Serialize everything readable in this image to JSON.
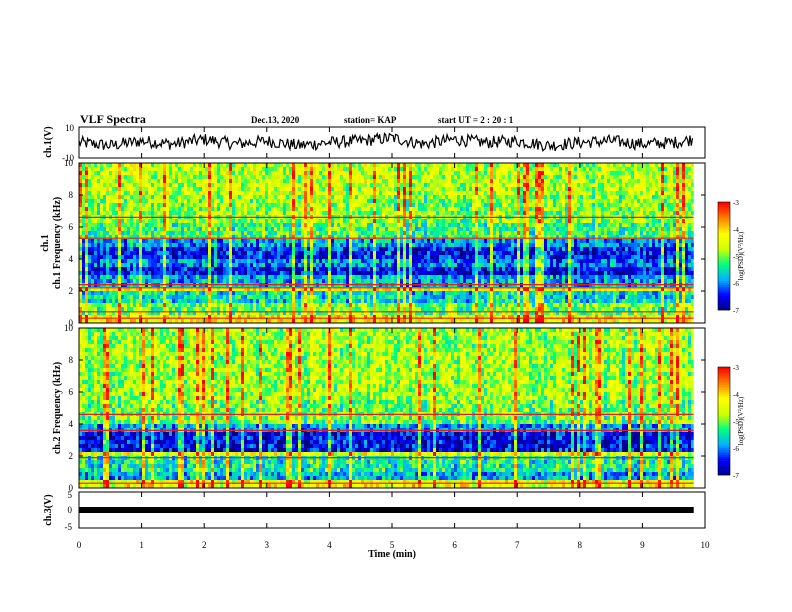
{
  "header": {
    "title": "VLF Spectra",
    "date": "Dec.13, 2020",
    "station": "station= KAP",
    "start": "start  UT =   2 : 20 : 1"
  },
  "colorbar": {
    "label": "log(PSD)(V²/Hz)",
    "ticks": [
      "-3",
      "-4",
      "-5",
      "-6",
      "-7"
    ],
    "range": [
      -7,
      -3
    ],
    "colors": [
      "#000080",
      "#0000ff",
      "#00b0ff",
      "#00ff80",
      "#d0ff00",
      "#ffff00",
      "#ff8000",
      "#ff0000",
      "#ffffff"
    ]
  },
  "chart_data": [
    {
      "type": "line",
      "panel": "ch1-waveform",
      "ylabel": "ch.1(V)",
      "ylim": [
        -10,
        10
      ],
      "yticks": [
        "10",
        "-10"
      ],
      "xlim": [
        0,
        10
      ],
      "series": [
        {
          "x": [
            0,
            0.5,
            1,
            1.5,
            2,
            2.5,
            3,
            3.5,
            4,
            4.5,
            5,
            5.5,
            6,
            6.5,
            7,
            7.5,
            8,
            8.5,
            9,
            9.5,
            9.8
          ],
          "values": [
            0,
            -2,
            1,
            -1,
            2,
            -1,
            1,
            -2,
            0,
            1,
            3,
            -1,
            2,
            0,
            1,
            -2,
            0,
            1,
            -1,
            0,
            2
          ]
        }
      ]
    },
    {
      "type": "heatmap",
      "panel": "ch1-spectrogram",
      "ylabel": "ch.1 Frequency (kHz)",
      "ylim": [
        0,
        10
      ],
      "yticks": [
        "0",
        "2",
        "4",
        "6",
        "8",
        "10"
      ],
      "xlim": [
        0,
        9.82
      ],
      "bands": [
        {
          "from": 0,
          "to": 0.5,
          "level": -4.2
        },
        {
          "from": 0.5,
          "to": 1.3,
          "level": -5.0
        },
        {
          "from": 1.3,
          "to": 2.0,
          "level": -5.6
        },
        {
          "from": 2.0,
          "to": 2.3,
          "level": -4.3
        },
        {
          "from": 2.3,
          "to": 3.0,
          "level": -5.8
        },
        {
          "from": 3.0,
          "to": 3.6,
          "level": -6.5
        },
        {
          "from": 3.6,
          "to": 4.0,
          "level": -6.0
        },
        {
          "from": 4.0,
          "to": 4.7,
          "level": -6.4
        },
        {
          "from": 4.7,
          "to": 5.3,
          "level": -5.9
        },
        {
          "from": 5.3,
          "to": 6.3,
          "level": -5.2
        },
        {
          "from": 6.3,
          "to": 8.0,
          "level": -4.9
        },
        {
          "from": 8.0,
          "to": 10.0,
          "level": -4.7
        }
      ],
      "lines_khz": [
        0.3,
        0.7,
        2.2,
        2.4,
        5.3,
        6.6
      ]
    },
    {
      "type": "heatmap",
      "panel": "ch2-spectrogram",
      "ylabel": "ch.2 Frequency (kHz)",
      "ylim": [
        0,
        10
      ],
      "yticks": [
        "0",
        "2",
        "4",
        "6",
        "8",
        "10"
      ],
      "xlim": [
        0,
        9.82
      ],
      "bands": [
        {
          "from": 0,
          "to": 0.4,
          "level": -4.3
        },
        {
          "from": 0.4,
          "to": 1.0,
          "level": -5.8
        },
        {
          "from": 1.0,
          "to": 2.0,
          "level": -5.4
        },
        {
          "from": 2.0,
          "to": 2.2,
          "level": -4.4
        },
        {
          "from": 2.2,
          "to": 3.4,
          "level": -6.5
        },
        {
          "from": 3.4,
          "to": 4.0,
          "level": -5.9
        },
        {
          "from": 4.0,
          "to": 5.5,
          "level": -5.0
        },
        {
          "from": 5.5,
          "to": 10.0,
          "level": -4.8
        }
      ],
      "lines_khz": [
        0.3,
        1.9,
        3.6,
        4.6
      ]
    },
    {
      "type": "line",
      "panel": "ch3-waveform",
      "ylabel": "ch.3(V)",
      "ylim": [
        -5,
        5
      ],
      "yticks": [
        "5",
        "0",
        "-5"
      ],
      "xlim": [
        0,
        10
      ],
      "series": [
        {
          "x": [
            0,
            9.82
          ],
          "values": [
            0,
            0
          ]
        }
      ]
    }
  ],
  "xaxis": {
    "label": "Time (min)",
    "ticks": [
      "0",
      "1",
      "2",
      "3",
      "4",
      "5",
      "6",
      "7",
      "8",
      "9",
      "10"
    ],
    "range": [
      0,
      10
    ]
  }
}
